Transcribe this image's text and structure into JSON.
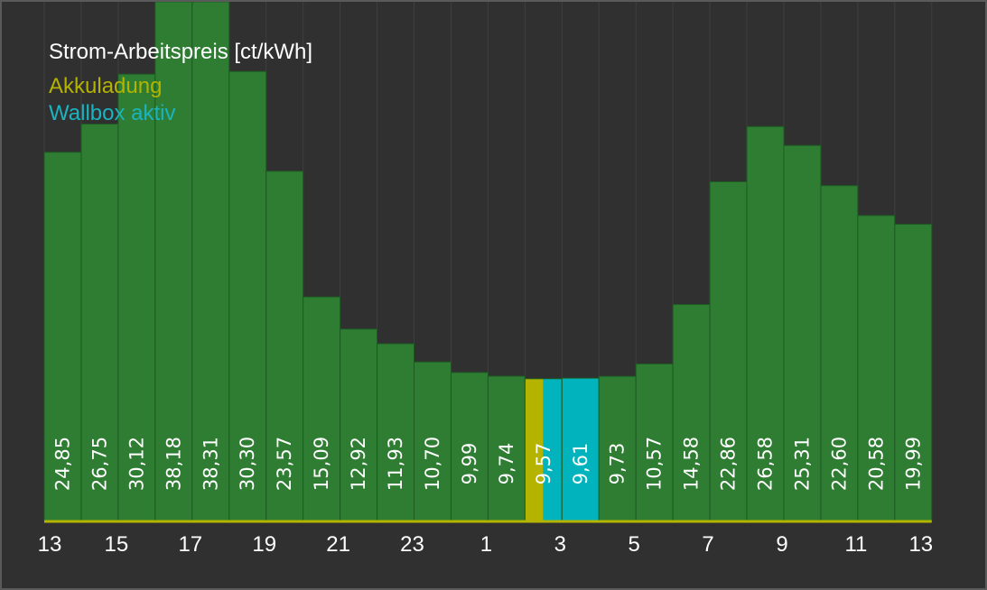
{
  "chart_data": {
    "type": "bar",
    "title": "Strom-Arbeitspreis [ct/kWh]",
    "legend": [
      {
        "label": "Akkuladung",
        "color": "#b3b300"
      },
      {
        "label": "Wallbox aktiv",
        "color": "#00b3bd"
      }
    ],
    "hours": [
      13,
      14,
      15,
      16,
      17,
      18,
      19,
      20,
      21,
      22,
      23,
      0,
      1,
      2,
      3,
      4,
      5,
      6,
      7,
      8,
      9,
      10,
      11,
      12
    ],
    "value_labels": [
      "24,85",
      "26,75",
      "30,12",
      "38,18",
      "38,31",
      "30,30",
      "23,57",
      "15,09",
      "12,92",
      "11,93",
      "10,70",
      "9,99",
      "9,74",
      "9,57",
      "9,61",
      "9,73",
      "10,57",
      "14,58",
      "22,86",
      "26,58",
      "25,31",
      "22,60",
      "20,58",
      "19,99"
    ],
    "values": [
      24.85,
      26.75,
      30.12,
      38.18,
      38.31,
      30.3,
      23.57,
      15.09,
      12.92,
      11.93,
      10.7,
      9.99,
      9.74,
      9.57,
      9.61,
      9.73,
      10.57,
      14.58,
      22.86,
      26.58,
      25.31,
      22.6,
      20.58,
      19.99
    ],
    "segments": [
      {
        "hour_index": 13,
        "portion": [
          0,
          0.5
        ],
        "status": "Akkuladung"
      },
      {
        "hour_index": 13,
        "portion": [
          0.5,
          1
        ],
        "status": "Wallbox aktiv"
      },
      {
        "hour_index": 14,
        "portion": [
          0,
          1
        ],
        "status": "Wallbox aktiv"
      }
    ],
    "x_tick_labels": [
      "13",
      "15",
      "17",
      "19",
      "21",
      "23",
      "1",
      "3",
      "5",
      "7",
      "9",
      "11",
      "13"
    ],
    "ylim": [
      0,
      35
    ],
    "grid": true,
    "colors": {
      "default_bar": "#2e7d32",
      "baseline": "#b3b300",
      "background": "#303030",
      "grid": "#3f3f3f"
    }
  }
}
